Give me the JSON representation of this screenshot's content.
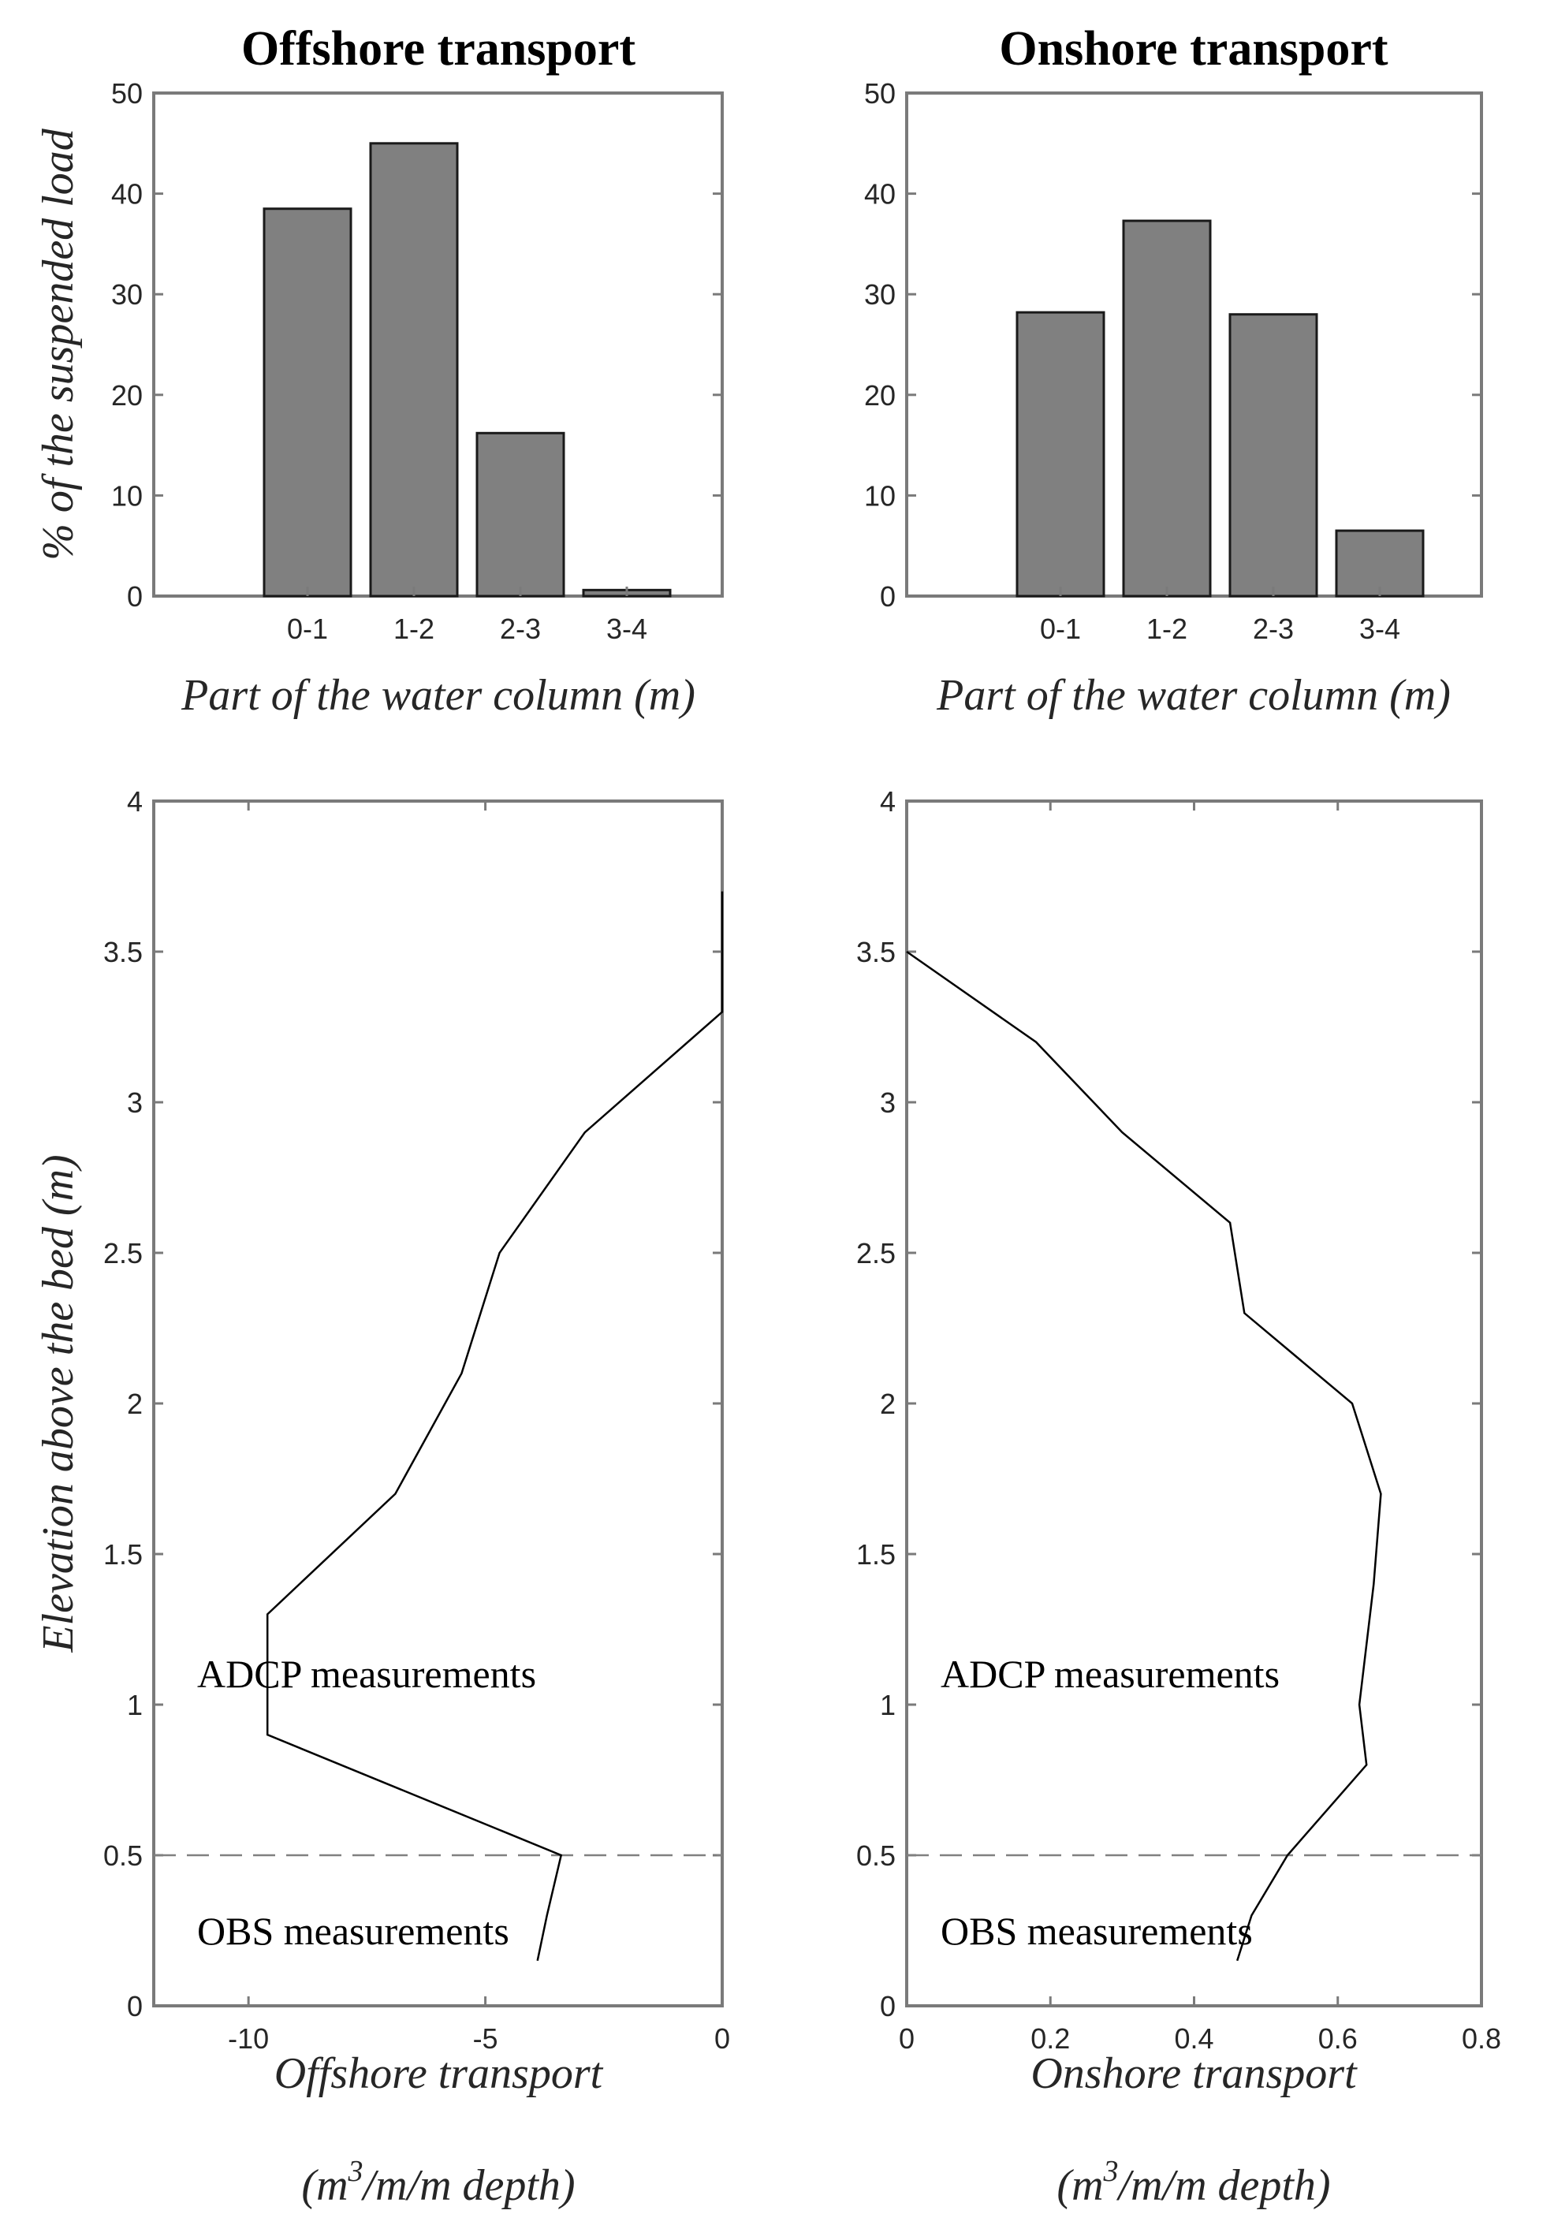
{
  "chart_data": [
    {
      "type": "bar",
      "id": "offshore-bars",
      "title": "Offshore transport",
      "xlabel": "Part of the water column (m)",
      "ylabel": "% of the suspended load",
      "categories": [
        "0-1",
        "1-2",
        "2-3",
        "3-4"
      ],
      "values": [
        38.5,
        45.0,
        16.2,
        0.6
      ],
      "ylim": [
        0,
        50
      ],
      "yticks": [
        "0",
        "10",
        "20",
        "30",
        "40",
        "50"
      ]
    },
    {
      "type": "bar",
      "id": "onshore-bars",
      "title": "Onshore transport",
      "xlabel": "Part of the water column (m)",
      "ylabel": "",
      "categories": [
        "0-1",
        "1-2",
        "2-3",
        "3-4"
      ],
      "values": [
        28.2,
        37.3,
        28.0,
        6.5
      ],
      "ylim": [
        0,
        50
      ],
      "yticks": [
        "0",
        "10",
        "20",
        "30",
        "40",
        "50"
      ]
    },
    {
      "type": "line",
      "id": "offshore-profile",
      "xlabel": "Offshore transport",
      "xlabel_units_prefix": "(m",
      "xlabel_units_sup": "3",
      "xlabel_units_suffix": "/m/m depth)",
      "ylabel": "Elevation above the bed (m)",
      "xlim": [
        -12,
        0
      ],
      "ylim": [
        0,
        4
      ],
      "xticks": [
        "-10",
        "-5",
        "0"
      ],
      "yticks": [
        "0",
        "0.5",
        "1",
        "1.5",
        "2",
        "2.5",
        "3",
        "3.5",
        "4"
      ],
      "x": [
        -3.9,
        -3.7,
        -3.4,
        -9.6,
        -9.6,
        -6.9,
        -5.5,
        -4.7,
        -2.9,
        0.0,
        0.0
      ],
      "y": [
        0.15,
        0.3,
        0.5,
        0.9,
        1.3,
        1.7,
        2.1,
        2.5,
        2.9,
        3.3,
        3.7
      ],
      "separator_y": 0.5,
      "annotations": [
        "ADCP measurements",
        "OBS measurements"
      ]
    },
    {
      "type": "line",
      "id": "onshore-profile",
      "xlabel": "Onshore transport",
      "xlabel_units_prefix": "(m",
      "xlabel_units_sup": "3",
      "xlabel_units_suffix": "/m/m depth)",
      "ylabel": "",
      "xlim": [
        0,
        0.8
      ],
      "ylim": [
        0,
        4
      ],
      "xticks": [
        "0",
        "0.2",
        "0.4",
        "0.6",
        "0.8"
      ],
      "yticks": [
        "0",
        "0.5",
        "1",
        "1.5",
        "2",
        "2.5",
        "3",
        "3.5",
        "4"
      ],
      "x": [
        0.46,
        0.48,
        0.53,
        0.64,
        0.63,
        0.65,
        0.66,
        0.62,
        0.47,
        0.45,
        0.3,
        0.18,
        0.0
      ],
      "y": [
        0.15,
        0.3,
        0.5,
        0.8,
        1.0,
        1.4,
        1.7,
        2.0,
        2.3,
        2.6,
        2.9,
        3.2,
        3.5
      ],
      "separator_y": 0.5,
      "annotations": [
        "ADCP measurements",
        "OBS measurements"
      ]
    }
  ]
}
